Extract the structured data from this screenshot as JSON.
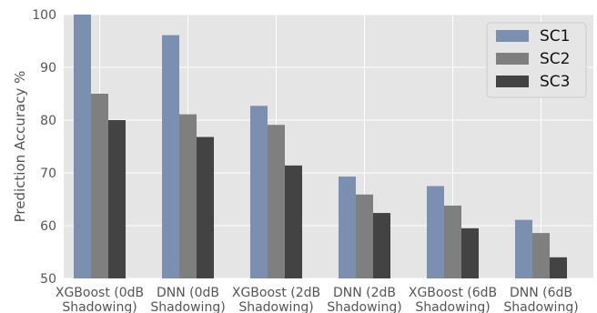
{
  "chart_data": {
    "type": "bar",
    "title": "",
    "xlabel": "",
    "ylabel": "Prediction Accuracy %",
    "ylim": [
      50,
      100
    ],
    "yticks": [
      50,
      60,
      70,
      80,
      90,
      100
    ],
    "grid": true,
    "legend_position": "top-right",
    "categories": [
      [
        "XGBoost (0dB",
        "Shadowing)"
      ],
      [
        "DNN (0dB",
        "Shadowing)"
      ],
      [
        "XGBoost (2dB",
        "Shadowing)"
      ],
      [
        "DNN (2dB",
        "Shadowing)"
      ],
      [
        "XGBoost (6dB",
        "Shadowing)"
      ],
      [
        "DNN (6dB",
        "Shadowing)"
      ]
    ],
    "series": [
      {
        "name": "SC1",
        "color": "#7b8fb0",
        "values": [
          100,
          96.1,
          82.7,
          69.3,
          67.5,
          61.1
        ]
      },
      {
        "name": "SC2",
        "color": "#7f7f7f",
        "values": [
          85.0,
          81.1,
          79.1,
          65.9,
          63.8,
          58.6
        ]
      },
      {
        "name": "SC3",
        "color": "#434343",
        "values": [
          80.0,
          76.8,
          71.4,
          62.4,
          59.5,
          54.0
        ]
      }
    ],
    "background": "#e5e5e5",
    "grid_color": "#ffffff"
  }
}
